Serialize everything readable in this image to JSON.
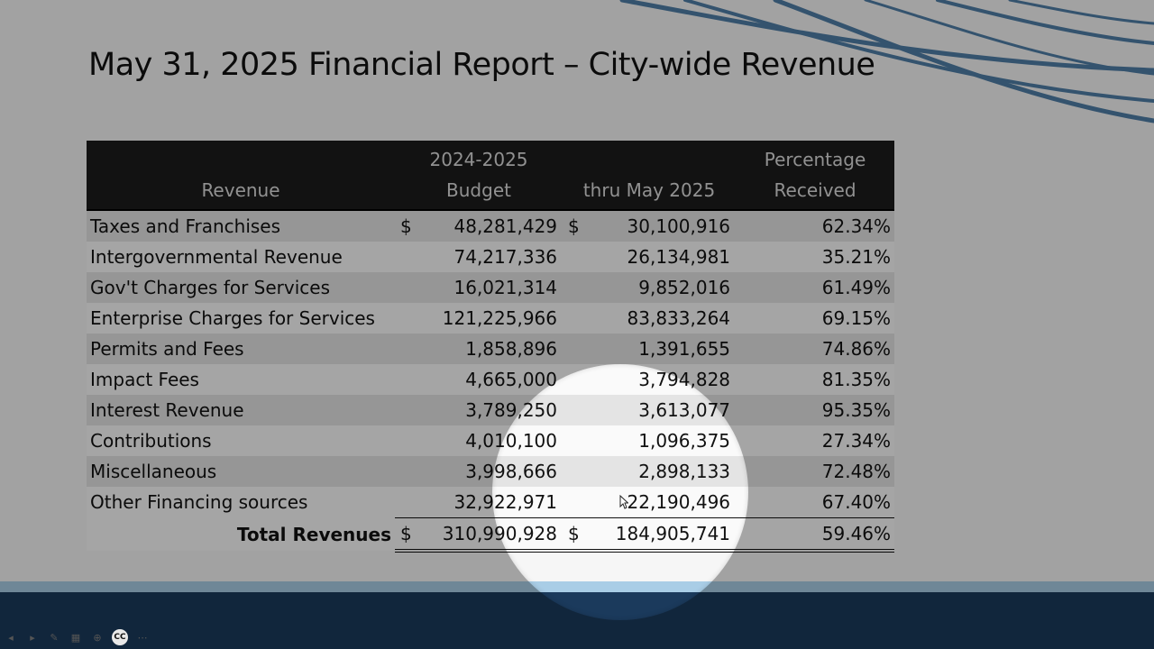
{
  "slide": {
    "title": "May 31, 2025 Financial Report – City-wide Revenue"
  },
  "table": {
    "headers": {
      "revenue": "Revenue",
      "budget_line1": "2024-2025",
      "budget_line2": "Budget",
      "thru": "thru May 2025",
      "pct_line1": "Percentage",
      "pct_line2": "Received"
    },
    "rows": [
      {
        "name": "Taxes and Franchises",
        "budget_cur": "$",
        "budget": "48,281,429",
        "thru_cur": "$",
        "thru": "30,100,916",
        "pct": "62.34%"
      },
      {
        "name": "Intergovernmental Revenue",
        "budget_cur": "",
        "budget": "74,217,336",
        "thru_cur": "",
        "thru": "26,134,981",
        "pct": "35.21%"
      },
      {
        "name": "Gov't Charges for Services",
        "budget_cur": "",
        "budget": "16,021,314",
        "thru_cur": "",
        "thru": "9,852,016",
        "pct": "61.49%"
      },
      {
        "name": "Enterprise Charges for Services",
        "budget_cur": "",
        "budget": "121,225,966",
        "thru_cur": "",
        "thru": "83,833,264",
        "pct": "69.15%"
      },
      {
        "name": "Permits and Fees",
        "budget_cur": "",
        "budget": "1,858,896",
        "thru_cur": "",
        "thru": "1,391,655",
        "pct": "74.86%"
      },
      {
        "name": "Impact Fees",
        "budget_cur": "",
        "budget": "4,665,000",
        "thru_cur": "",
        "thru": "3,794,828",
        "pct": "81.35%"
      },
      {
        "name": "Interest Revenue",
        "budget_cur": "",
        "budget": "3,789,250",
        "thru_cur": "",
        "thru": "3,613,077",
        "pct": "95.35%"
      },
      {
        "name": "Contributions",
        "budget_cur": "",
        "budget": "4,010,100",
        "thru_cur": "",
        "thru": "1,096,375",
        "pct": "27.34%"
      },
      {
        "name": "Miscellaneous",
        "budget_cur": "",
        "budget": "3,998,666",
        "thru_cur": "",
        "thru": "2,898,133",
        "pct": "72.48%"
      },
      {
        "name": "Other Financing sources",
        "budget_cur": "",
        "budget": "32,922,971",
        "thru_cur": "",
        "thru": "22,190,496",
        "pct": "67.40%"
      }
    ],
    "total": {
      "label": "Total Revenues",
      "budget_cur": "$",
      "budget": "310,990,928",
      "thru_cur": "$",
      "thru": "184,905,741",
      "pct": "59.46%"
    }
  },
  "player": {
    "record_badge": "CC"
  },
  "colors": {
    "header_bg": "#1c1c1c",
    "row_shade": "#e4e4e4",
    "taskbar_stripe": "#a9cde6",
    "taskbar_band": "#1b3a5c",
    "swoosh": "#4f7fa8"
  }
}
